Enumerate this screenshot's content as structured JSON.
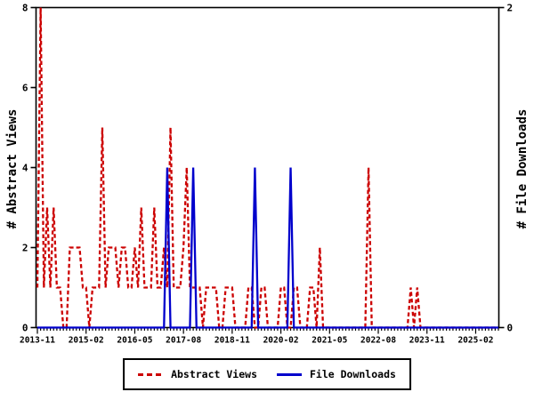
{
  "chart_data": {
    "type": "line",
    "title": "",
    "x_axis": {
      "start_month": "2013-11",
      "end_month": "2025-09",
      "n_months": 143,
      "minor_tick": "monthly",
      "major_tick_interval_months": 15,
      "tick_labels": [
        "2013-11",
        "2015-02",
        "2016-05",
        "2017-08",
        "2018-11",
        "2020-02",
        "2021-05",
        "2022-08",
        "2023-11",
        "2025-02"
      ]
    },
    "y_left": {
      "label": "# Abstract Views",
      "min": 0,
      "max": 8,
      "ticks": [
        0,
        2,
        4,
        6,
        8
      ]
    },
    "y_right": {
      "label": "# File Downloads",
      "min": 0,
      "max": 2,
      "ticks": [
        0,
        2
      ]
    },
    "grid": "off",
    "legend": {
      "position": "bottom",
      "border": true
    },
    "series": [
      {
        "name": "Abstract Views",
        "axis": "left",
        "color": "#cc0000",
        "style": "dashed",
        "values": [
          1,
          8,
          1,
          3,
          1,
          3,
          1,
          1,
          0,
          0,
          2,
          2,
          2,
          2,
          1,
          1,
          0,
          1,
          1,
          1,
          5,
          1,
          2,
          2,
          2,
          1,
          2,
          2,
          1,
          1,
          2,
          1,
          3,
          1,
          1,
          1,
          3,
          1,
          1,
          2,
          1,
          5,
          1,
          1,
          1,
          2,
          4,
          1,
          1,
          1,
          1,
          0,
          1,
          1,
          1,
          1,
          0,
          0,
          1,
          1,
          1,
          0,
          0,
          0,
          0,
          1,
          1,
          0,
          0,
          1,
          1,
          0,
          0,
          0,
          0,
          1,
          1,
          0,
          0,
          1,
          1,
          0,
          0,
          0,
          1,
          1,
          0,
          2,
          0,
          0,
          0,
          0,
          0,
          0,
          0,
          0,
          0,
          0,
          0,
          0,
          0,
          0,
          4,
          0,
          0,
          0,
          0,
          0,
          0,
          0,
          0,
          0,
          0,
          0,
          0,
          1,
          0,
          1,
          0,
          0,
          0,
          0,
          0,
          0,
          0,
          0,
          0,
          0,
          0,
          0,
          0,
          0,
          0,
          0,
          0,
          0,
          0,
          0,
          0,
          0,
          0,
          0,
          0
        ]
      },
      {
        "name": "File Downloads",
        "axis": "right",
        "color": "#0000cc",
        "style": "solid",
        "values": [
          0,
          0,
          0,
          0,
          0,
          0,
          0,
          0,
          0,
          0,
          0,
          0,
          0,
          0,
          0,
          0,
          0,
          0,
          0,
          0,
          0,
          0,
          0,
          0,
          0,
          0,
          0,
          0,
          0,
          0,
          0,
          0,
          0,
          0,
          0,
          0,
          0,
          0,
          0,
          0,
          1,
          0,
          0,
          0,
          0,
          0,
          0,
          0,
          1,
          0,
          0,
          0,
          0,
          0,
          0,
          0,
          0,
          0,
          0,
          0,
          0,
          0,
          0,
          0,
          0,
          0,
          0,
          1,
          0,
          0,
          0,
          0,
          0,
          0,
          0,
          0,
          0,
          0,
          1,
          0,
          0,
          0,
          0,
          0,
          0,
          0,
          0,
          0,
          0,
          0,
          0,
          0,
          0,
          0,
          0,
          0,
          0,
          0,
          0,
          0,
          0,
          0,
          0,
          0,
          0,
          0,
          0,
          0,
          0,
          0,
          0,
          0,
          0,
          0,
          0,
          0,
          0,
          0,
          0,
          0,
          0,
          0,
          0,
          0,
          0,
          0,
          0,
          0,
          0,
          0,
          0,
          0,
          0,
          0,
          0,
          0,
          0,
          0,
          0,
          0,
          0,
          0,
          0
        ]
      }
    ],
    "colors": {
      "axis": "#000000",
      "background": "#ffffff"
    }
  }
}
